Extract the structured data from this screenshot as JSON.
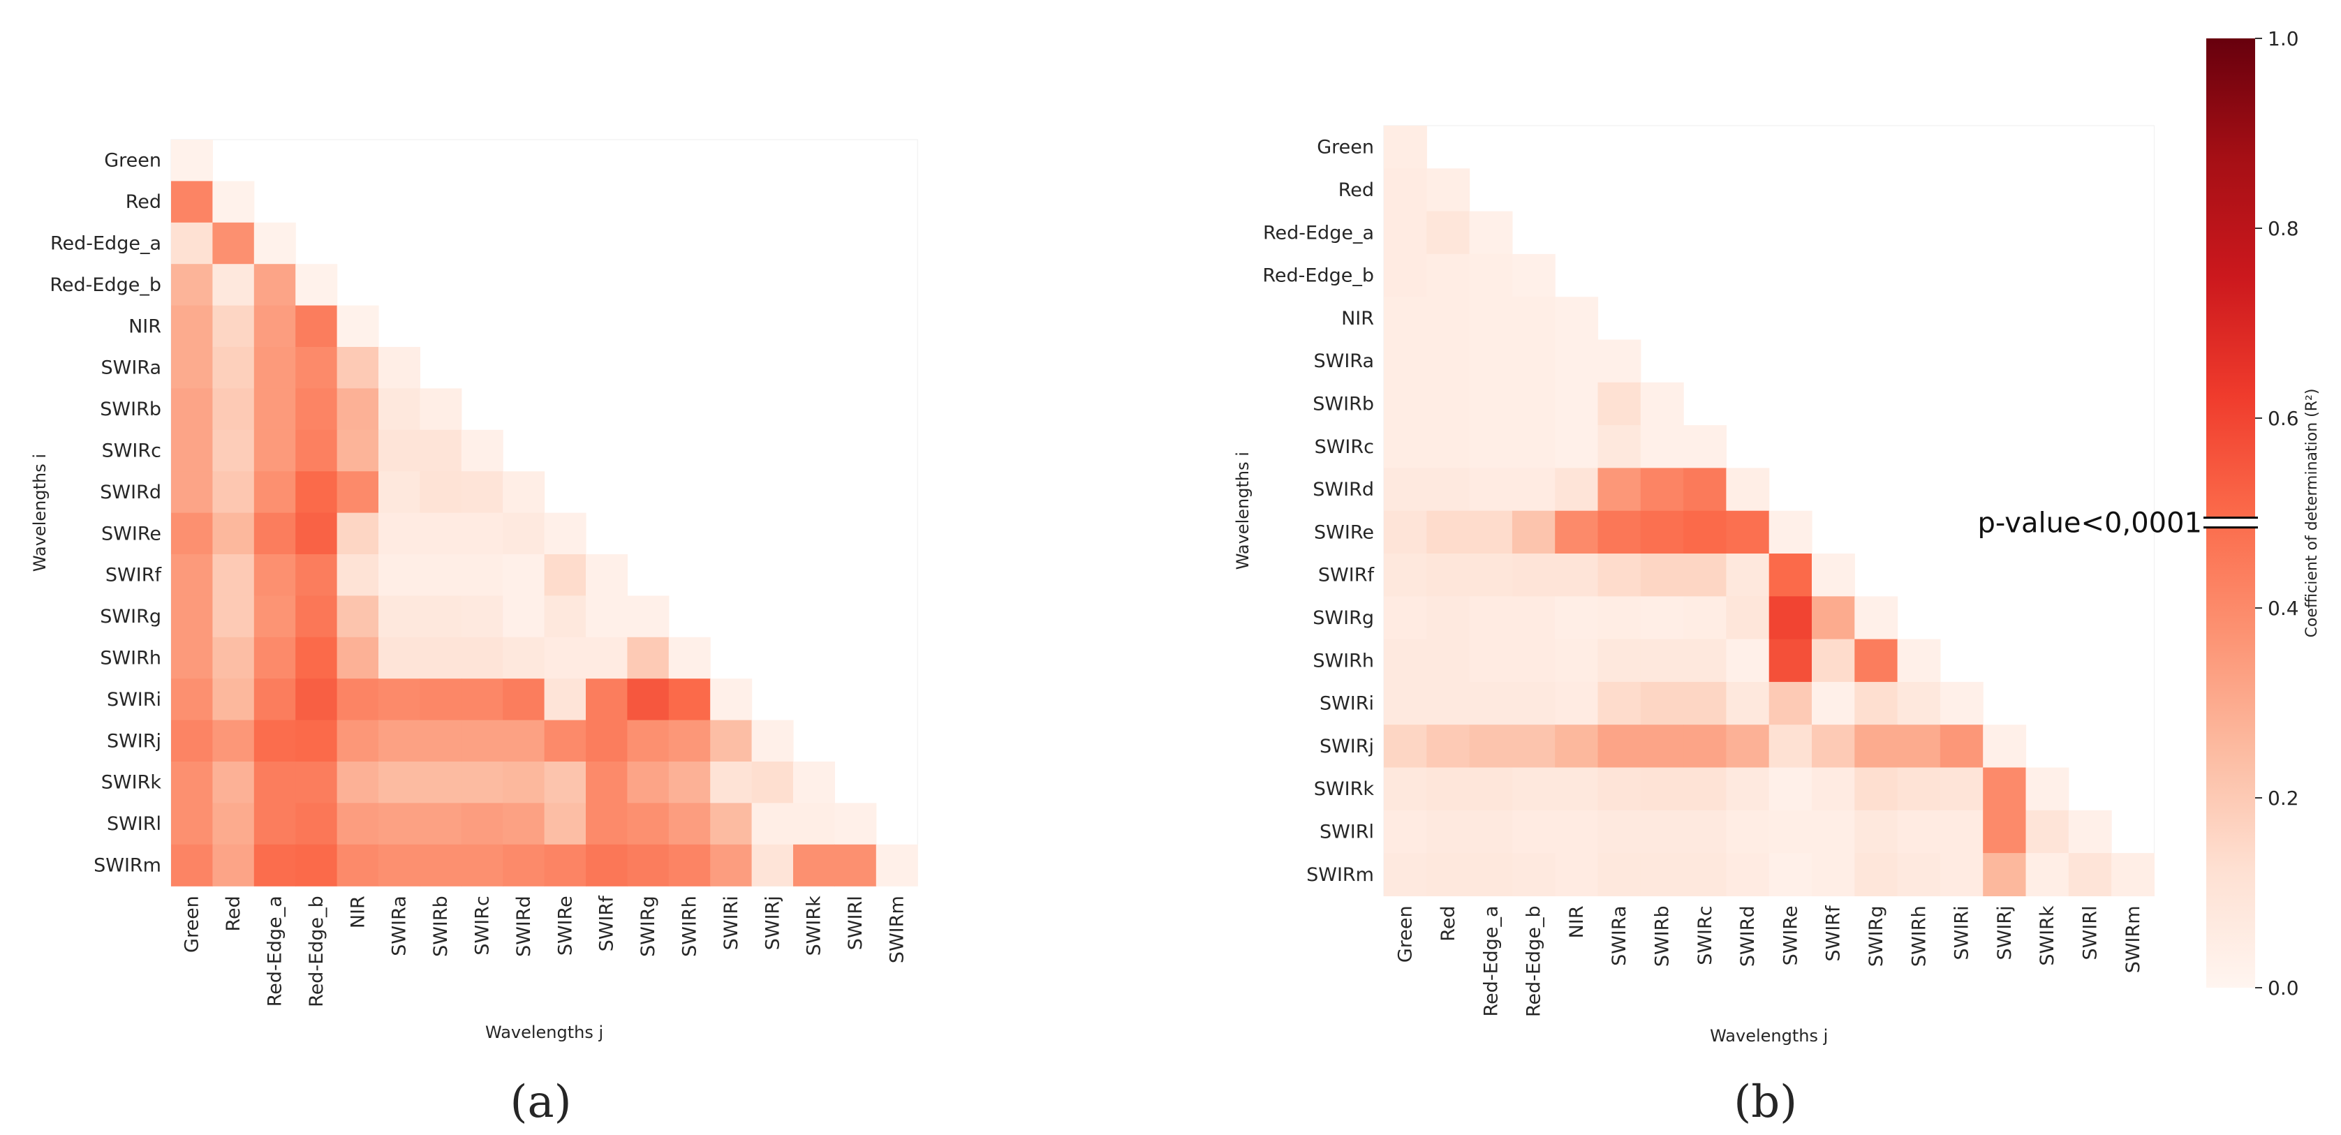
{
  "labels": [
    "Green",
    "Red",
    "Red-Edge_a",
    "Red-Edge_b",
    "NIR",
    "SWIRa",
    "SWIRb",
    "SWIRc",
    "SWIRd",
    "SWIRe",
    "SWIRf",
    "SWIRg",
    "SWIRh",
    "SWIRi",
    "SWIRj",
    "SWIRk",
    "SWIRl",
    "SWIRm"
  ],
  "panel_a": {
    "panel_label": "(a)",
    "xlabel": "Wavelengths j",
    "ylabel": "Wavelengths i"
  },
  "panel_b": {
    "panel_label": "(b)",
    "xlabel": "Wavelengths j",
    "ylabel": "Wavelengths i"
  },
  "colorbar": {
    "label": "Coefficient of determination (R²)",
    "ticks": [
      "0.0",
      "0.2",
      "0.4",
      "0.6",
      "0.8",
      "1.0"
    ],
    "threshold_value": 0.49,
    "threshold_label": "p-value<0,0001",
    "cmap_stops": [
      "#fff5f0",
      "#fee0d2",
      "#fcbba1",
      "#fc9272",
      "#fb6a4a",
      "#ef3b2c",
      "#cb181d",
      "#a50f15",
      "#67000d"
    ]
  },
  "chart_data": [
    {
      "type": "heatmap",
      "title": "(a)",
      "xlabel": "Wavelengths j",
      "ylabel": "Wavelengths i",
      "categories": [
        "Green",
        "Red",
        "Red-Edge_a",
        "Red-Edge_b",
        "NIR",
        "SWIRa",
        "SWIRb",
        "SWIRc",
        "SWIRd",
        "SWIRe",
        "SWIRf",
        "SWIRg",
        "SWIRh",
        "SWIRi",
        "SWIRj",
        "SWIRk",
        "SWIRl",
        "SWIRm"
      ],
      "zlim": [
        0,
        1
      ],
      "matrix": [
        [
          0.02
        ],
        [
          0.42,
          0.02
        ],
        [
          0.12,
          0.38,
          0.02
        ],
        [
          0.27,
          0.08,
          0.32,
          0.02
        ],
        [
          0.3,
          0.16,
          0.34,
          0.44,
          0.02
        ],
        [
          0.3,
          0.18,
          0.35,
          0.4,
          0.2,
          0.04
        ],
        [
          0.32,
          0.2,
          0.35,
          0.42,
          0.28,
          0.08,
          0.04
        ],
        [
          0.32,
          0.19,
          0.35,
          0.43,
          0.27,
          0.1,
          0.1,
          0.03
        ],
        [
          0.32,
          0.21,
          0.38,
          0.5,
          0.4,
          0.08,
          0.11,
          0.1,
          0.04
        ],
        [
          0.38,
          0.26,
          0.44,
          0.52,
          0.16,
          0.06,
          0.06,
          0.06,
          0.07,
          0.03
        ],
        [
          0.35,
          0.2,
          0.38,
          0.44,
          0.11,
          0.04,
          0.04,
          0.04,
          0.03,
          0.14,
          0.03
        ],
        [
          0.35,
          0.2,
          0.37,
          0.46,
          0.22,
          0.08,
          0.08,
          0.07,
          0.03,
          0.08,
          0.03,
          0.03
        ],
        [
          0.35,
          0.24,
          0.4,
          0.5,
          0.28,
          0.1,
          0.1,
          0.1,
          0.08,
          0.06,
          0.06,
          0.2,
          0.03
        ],
        [
          0.38,
          0.26,
          0.44,
          0.53,
          0.42,
          0.4,
          0.41,
          0.41,
          0.44,
          0.1,
          0.44,
          0.55,
          0.5,
          0.03
        ],
        [
          0.42,
          0.36,
          0.49,
          0.5,
          0.36,
          0.33,
          0.33,
          0.33,
          0.33,
          0.4,
          0.44,
          0.38,
          0.36,
          0.24,
          0.03
        ],
        [
          0.38,
          0.28,
          0.44,
          0.44,
          0.28,
          0.25,
          0.25,
          0.25,
          0.26,
          0.22,
          0.4,
          0.32,
          0.28,
          0.11,
          0.13,
          0.03
        ],
        [
          0.38,
          0.3,
          0.44,
          0.46,
          0.34,
          0.33,
          0.33,
          0.34,
          0.33,
          0.24,
          0.4,
          0.38,
          0.34,
          0.25,
          0.04,
          0.04,
          0.03
        ],
        [
          0.42,
          0.32,
          0.49,
          0.5,
          0.4,
          0.38,
          0.38,
          0.38,
          0.4,
          0.42,
          0.46,
          0.44,
          0.42,
          0.34,
          0.1,
          0.38,
          0.38,
          0.03
        ]
      ]
    },
    {
      "type": "heatmap",
      "title": "(b)",
      "xlabel": "Wavelengths j",
      "ylabel": "Wavelengths i",
      "categories": [
        "Green",
        "Red",
        "Red-Edge_a",
        "Red-Edge_b",
        "NIR",
        "SWIRa",
        "SWIRb",
        "SWIRc",
        "SWIRd",
        "SWIRe",
        "SWIRf",
        "SWIRg",
        "SWIRh",
        "SWIRi",
        "SWIRj",
        "SWIRk",
        "SWIRl",
        "SWIRm"
      ],
      "zlim": [
        0,
        1
      ],
      "matrix": [
        [
          0.05
        ],
        [
          0.06,
          0.04
        ],
        [
          0.06,
          0.09,
          0.03
        ],
        [
          0.06,
          0.05,
          0.04,
          0.03
        ],
        [
          0.05,
          0.05,
          0.04,
          0.04,
          0.03
        ],
        [
          0.05,
          0.05,
          0.04,
          0.04,
          0.03,
          0.03
        ],
        [
          0.05,
          0.05,
          0.04,
          0.04,
          0.03,
          0.12,
          0.03
        ],
        [
          0.05,
          0.05,
          0.04,
          0.04,
          0.03,
          0.08,
          0.03,
          0.03
        ],
        [
          0.07,
          0.07,
          0.06,
          0.06,
          0.1,
          0.36,
          0.42,
          0.45,
          0.04
        ],
        [
          0.1,
          0.14,
          0.14,
          0.22,
          0.4,
          0.46,
          0.48,
          0.5,
          0.48,
          0.03
        ],
        [
          0.08,
          0.09,
          0.09,
          0.1,
          0.1,
          0.14,
          0.16,
          0.16,
          0.08,
          0.5,
          0.03
        ],
        [
          0.06,
          0.07,
          0.06,
          0.06,
          0.04,
          0.05,
          0.04,
          0.05,
          0.09,
          0.6,
          0.3,
          0.03
        ],
        [
          0.07,
          0.07,
          0.06,
          0.06,
          0.05,
          0.08,
          0.08,
          0.08,
          0.03,
          0.57,
          0.14,
          0.44,
          0.03
        ],
        [
          0.07,
          0.07,
          0.07,
          0.07,
          0.06,
          0.14,
          0.16,
          0.16,
          0.08,
          0.2,
          0.03,
          0.13,
          0.08,
          0.03
        ],
        [
          0.16,
          0.2,
          0.22,
          0.22,
          0.26,
          0.32,
          0.32,
          0.32,
          0.28,
          0.12,
          0.2,
          0.3,
          0.3,
          0.36,
          0.03
        ],
        [
          0.08,
          0.09,
          0.09,
          0.08,
          0.08,
          0.1,
          0.11,
          0.11,
          0.07,
          0.03,
          0.06,
          0.13,
          0.11,
          0.1,
          0.4,
          0.03
        ],
        [
          0.06,
          0.07,
          0.07,
          0.06,
          0.06,
          0.07,
          0.07,
          0.07,
          0.05,
          0.04,
          0.04,
          0.08,
          0.06,
          0.06,
          0.4,
          0.1,
          0.03
        ],
        [
          0.07,
          0.08,
          0.08,
          0.07,
          0.06,
          0.08,
          0.08,
          0.08,
          0.06,
          0.03,
          0.04,
          0.09,
          0.07,
          0.06,
          0.26,
          0.04,
          0.1,
          0.04
        ]
      ]
    }
  ]
}
